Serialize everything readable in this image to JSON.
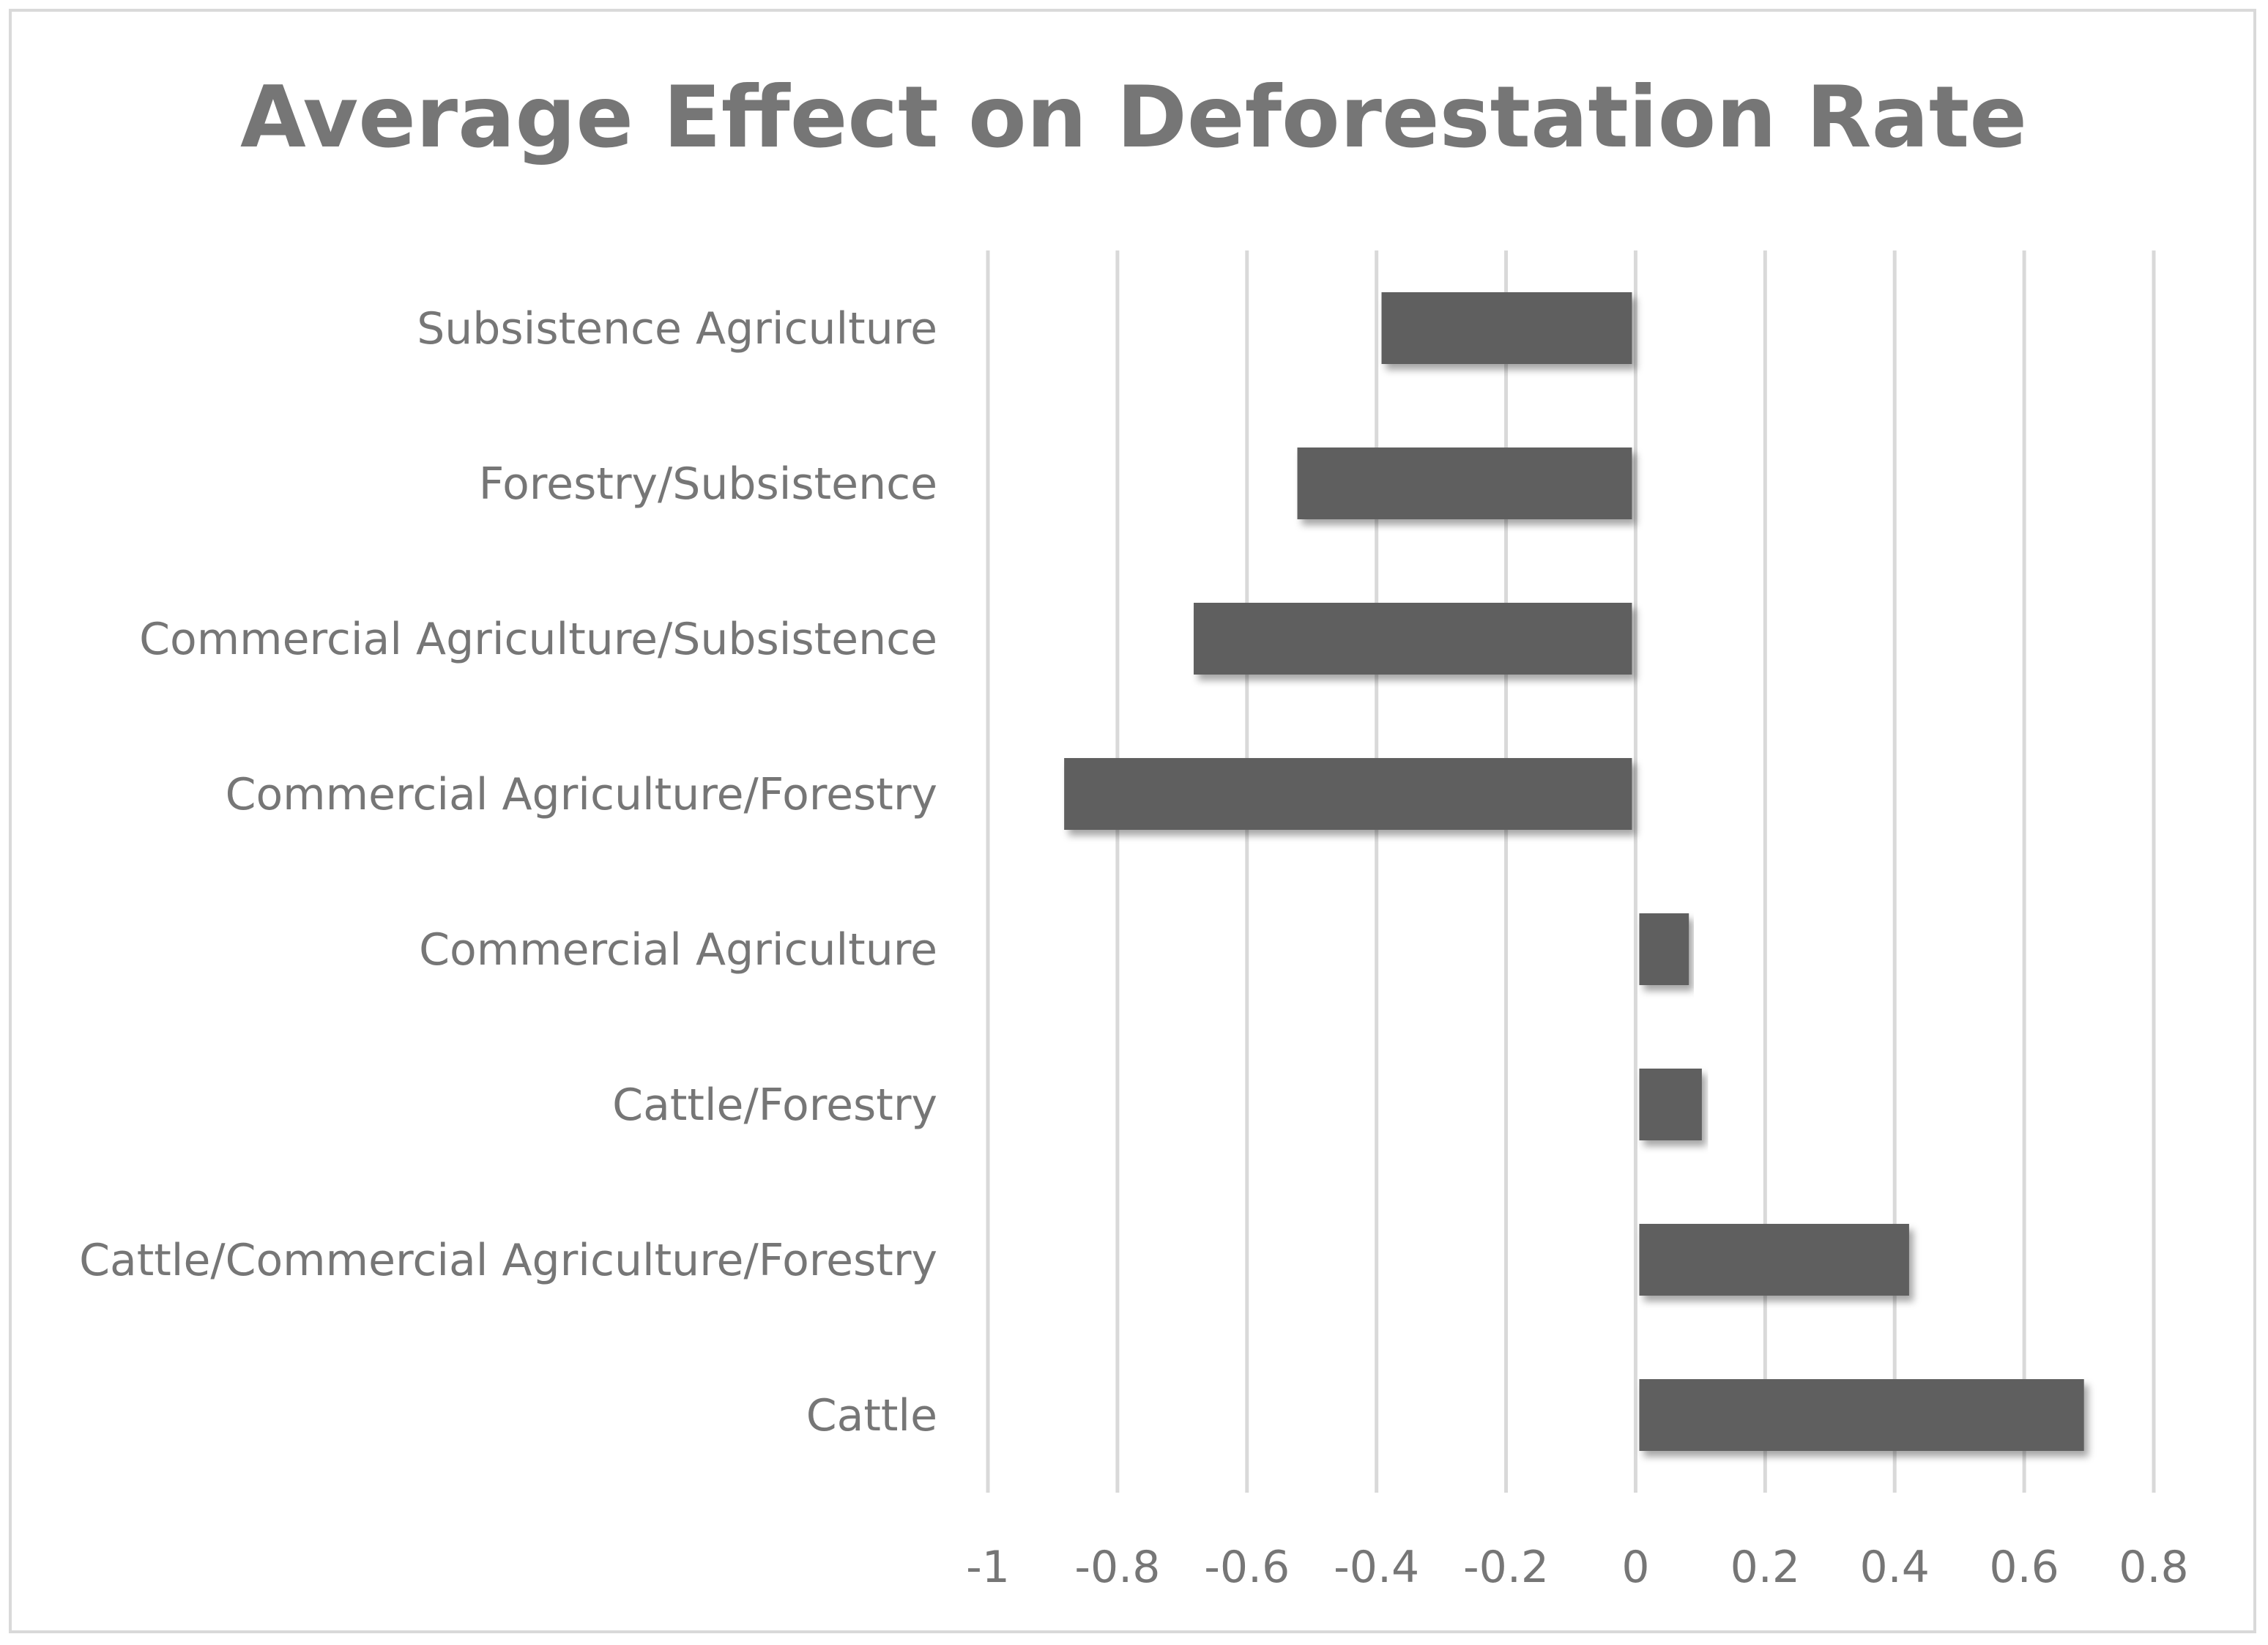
{
  "chart_data": {
    "type": "bar",
    "orientation": "horizontal",
    "title": "Average Effect on Deforestation Rate",
    "xlabel": "",
    "ylabel": "",
    "categories": [
      "Subsistence Agriculture",
      "Forestry/Subsistence",
      "Commercial Agriculture/Subsistence",
      "Commercial Agriculture/Forestry",
      "Commercial Agriculture",
      "Cattle/Forestry",
      "Cattle/Commercial Agriculture/Forestry",
      "Cattle"
    ],
    "values": [
      -0.39,
      -0.52,
      -0.68,
      -0.88,
      0.08,
      0.1,
      0.42,
      0.69
    ],
    "xlim": [
      -1,
      0.8
    ],
    "x_ticks": [
      "-1",
      "-0.8",
      "-0.6",
      "-0.4",
      "-0.2",
      "0",
      "0.2",
      "0.4",
      "0.6",
      "0.8"
    ],
    "tick_values": [
      -1,
      -0.8,
      -0.6,
      -0.4,
      -0.2,
      0,
      0.2,
      0.4,
      0.6,
      0.8
    ],
    "grid": "vertical",
    "legend": "none",
    "bar_color": "#5e5e5e",
    "text_color": "#767676",
    "grid_color": "#d9d9d9"
  }
}
